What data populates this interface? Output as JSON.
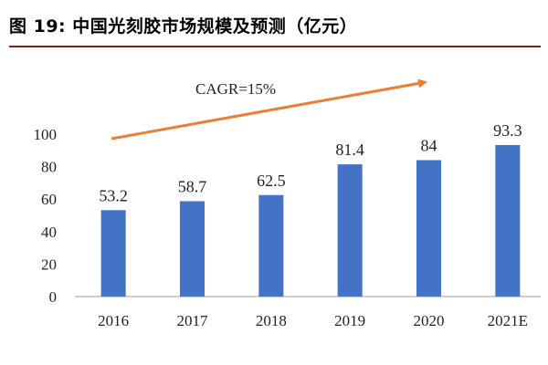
{
  "figure_title": "图 19:  中国光刻胶市场规模及预测（亿元）",
  "colors": {
    "bar": "#4472C4",
    "arrow": "#ED7D31",
    "axis": "#BFBFBF",
    "title_rule": "#7A1F1F"
  },
  "chart_data": {
    "type": "bar",
    "title": "中国光刻胶市场规模及预测（亿元）",
    "categories": [
      "2016",
      "2017",
      "2018",
      "2019",
      "2020",
      "2021E"
    ],
    "values": [
      53.2,
      58.7,
      62.5,
      81.4,
      84,
      93.3
    ],
    "data_labels": [
      "53.2",
      "58.7",
      "62.5",
      "81.4",
      "84",
      "93.3"
    ],
    "yticks": [
      0,
      20,
      40,
      60,
      80,
      100
    ],
    "ylim": [
      0,
      100
    ],
    "xlabel": "",
    "ylabel": "",
    "grid": false,
    "annotation": {
      "text": "CAGR=15%",
      "arrow": "increasing trend"
    }
  }
}
